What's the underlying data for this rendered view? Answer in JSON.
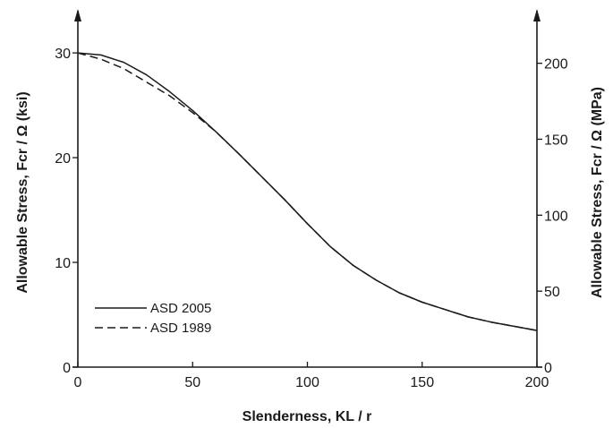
{
  "chart_data": {
    "type": "line",
    "xlabel": "Slenderness, KL / r",
    "ylabel_left": "Allowable Stress, Fcr / Ω (ksi)",
    "ylabel_right": "Allowable Stress, Fcr / Ω (MPa)",
    "xlim": [
      0,
      200
    ],
    "ylim_left": [
      0,
      33
    ],
    "ylim_right": [
      0,
      227.5
    ],
    "x_ticks": [
      "0",
      "50",
      "100",
      "150",
      "200"
    ],
    "y_ticks_left": [
      "0",
      "10",
      "20",
      "30"
    ],
    "y_ticks_right": [
      "0",
      "50",
      "100",
      "150",
      "200"
    ],
    "grid": false,
    "legend_position": "lower-left",
    "series": [
      {
        "name": "ASD 2005",
        "style": "solid",
        "x": [
          0,
          10,
          20,
          30,
          40,
          50,
          60,
          70,
          80,
          90,
          100,
          110,
          120,
          130,
          140,
          150,
          160,
          170,
          180,
          190,
          200
        ],
        "y": [
          30.0,
          29.8,
          29.1,
          27.9,
          26.3,
          24.5,
          22.5,
          20.4,
          18.2,
          16.0,
          13.7,
          11.5,
          9.7,
          8.3,
          7.1,
          6.2,
          5.5,
          4.8,
          4.3,
          3.9,
          3.5
        ]
      },
      {
        "name": "ASD 1989",
        "style": "dashed",
        "x": [
          0,
          10,
          20,
          30,
          40,
          50,
          60,
          70,
          80,
          90,
          100,
          110,
          120,
          130,
          140,
          150,
          160,
          170,
          180,
          190,
          200
        ],
        "y": [
          30.0,
          29.4,
          28.5,
          27.2,
          25.9,
          24.3,
          22.5,
          20.4,
          18.2,
          16.0,
          13.7,
          11.5,
          9.7,
          8.3,
          7.1,
          6.2,
          5.5,
          4.8,
          4.3,
          3.9,
          3.5
        ]
      }
    ]
  }
}
